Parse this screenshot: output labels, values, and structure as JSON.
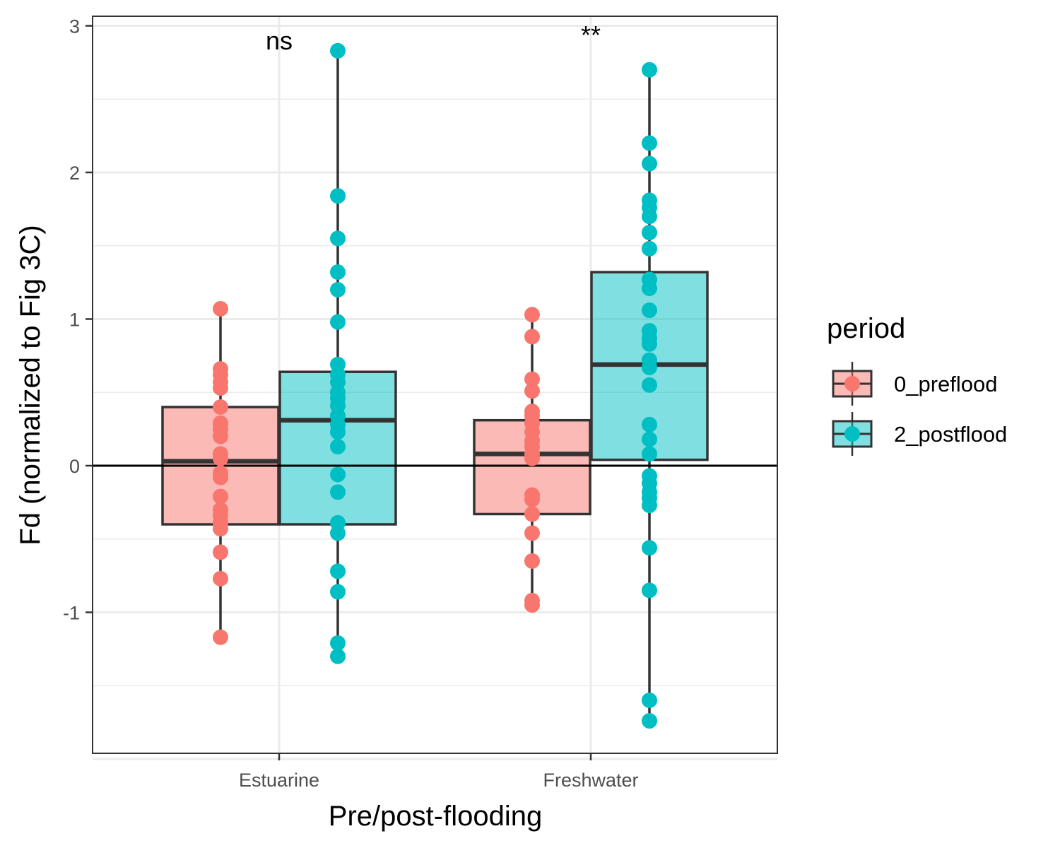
{
  "chart_data": {
    "type": "box",
    "title": "",
    "xlabel": "Pre/post-flooding",
    "ylabel": "Fd (normalized to Fig 3C)",
    "ylim": [
      -2.0,
      3.05
    ],
    "yticks": [
      3,
      2,
      1,
      0,
      -1
    ],
    "ytick_labels": [
      "3",
      "2",
      "1",
      "0",
      "-1"
    ],
    "grid": true,
    "reference_line_y": 0,
    "categories": [
      "Estuarine",
      "Freshwater"
    ],
    "legend": {
      "title": "period",
      "position": "right",
      "entries": [
        "0_preflood",
        "2_postflood"
      ]
    },
    "colors": {
      "0_preflood": "#F8766D",
      "2_postflood": "#00BFC4",
      "box_outline": "#333333"
    },
    "annotations": [
      {
        "category": "Estuarine",
        "text": "ns"
      },
      {
        "category": "Freshwater",
        "text": "**"
      }
    ],
    "series": [
      {
        "name": "0_preflood",
        "boxes": [
          {
            "category": "Estuarine",
            "q1": -0.4,
            "median": 0.03,
            "q3": 0.4,
            "whisker_low": -1.17,
            "whisker_high": 1.07
          },
          {
            "category": "Freshwater",
            "q1": -0.33,
            "median": 0.08,
            "q3": 0.31,
            "whisker_low": -0.95,
            "whisker_high": 1.03
          }
        ],
        "points": [
          {
            "category": "Estuarine",
            "values": [
              1.07,
              0.66,
              0.62,
              0.57,
              0.53,
              0.4,
              0.29,
              0.25,
              0.2,
              0.08,
              0.05,
              -0.05,
              -0.08,
              -0.21,
              -0.3,
              -0.34,
              -0.39,
              -0.43,
              -0.59,
              -0.77,
              -1.17
            ]
          },
          {
            "category": "Freshwater",
            "values": [
              1.03,
              0.88,
              0.59,
              0.51,
              0.37,
              0.34,
              0.29,
              0.23,
              0.17,
              0.13,
              0.08,
              0.05,
              -0.2,
              -0.23,
              -0.33,
              -0.46,
              -0.65,
              -0.92,
              -0.95
            ]
          }
        ]
      },
      {
        "name": "2_postflood",
        "boxes": [
          {
            "category": "Estuarine",
            "q1": -0.4,
            "median": 0.31,
            "q3": 0.64,
            "whisker_low": -1.3,
            "whisker_high": 2.83
          },
          {
            "category": "Freshwater",
            "q1": 0.04,
            "median": 0.69,
            "q3": 1.32,
            "whisker_low": -1.74,
            "whisker_high": 2.7
          }
        ],
        "points": [
          {
            "category": "Estuarine",
            "values": [
              2.83,
              1.84,
              1.55,
              1.32,
              1.2,
              0.98,
              0.69,
              0.62,
              0.57,
              0.5,
              0.46,
              0.41,
              0.34,
              0.28,
              0.23,
              0.13,
              -0.06,
              -0.18,
              -0.39,
              -0.46,
              -0.72,
              -0.86,
              -1.21,
              -1.3
            ]
          },
          {
            "category": "Freshwater",
            "values": [
              2.7,
              2.2,
              2.06,
              1.81,
              1.76,
              1.7,
              1.59,
              1.48,
              1.27,
              1.21,
              1.06,
              0.92,
              0.87,
              0.83,
              0.72,
              0.67,
              0.55,
              0.28,
              0.18,
              0.08,
              -0.07,
              -0.12,
              -0.18,
              -0.22,
              -0.27,
              -0.56,
              -0.85,
              -1.6,
              -1.74
            ]
          }
        ]
      }
    ]
  }
}
